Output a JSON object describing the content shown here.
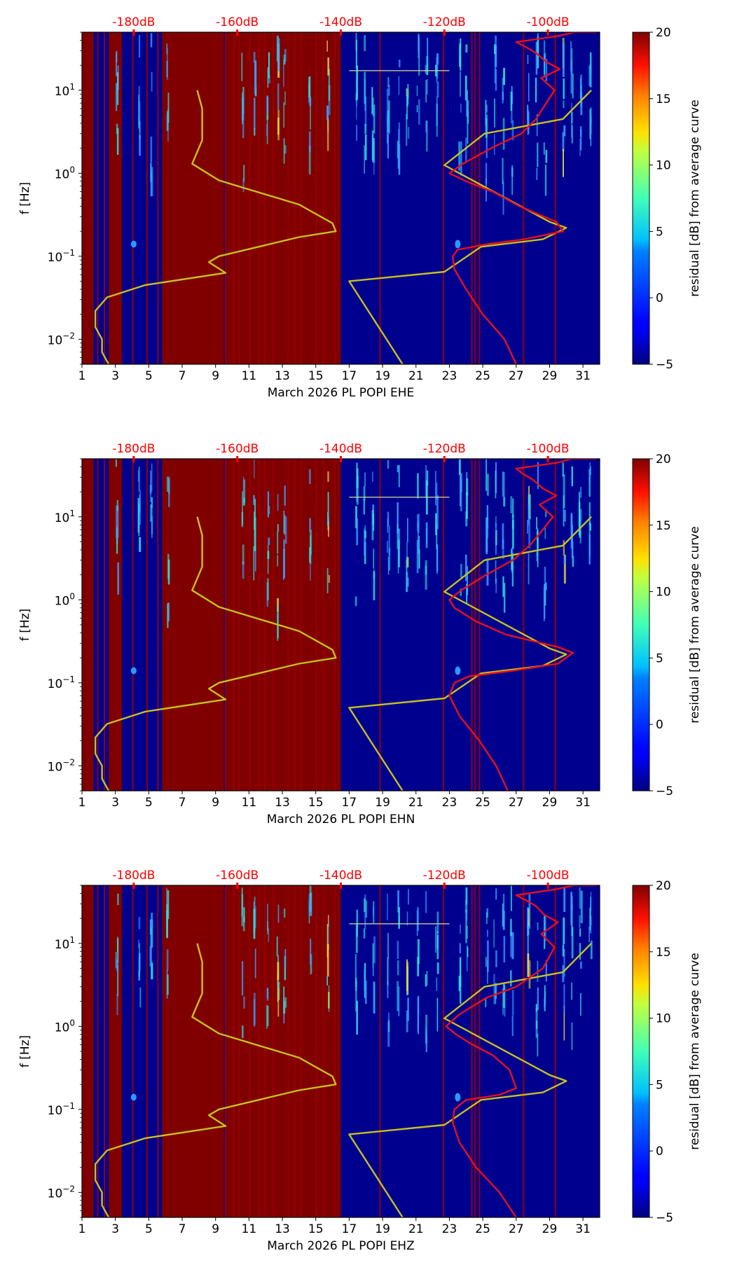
{
  "figure": {
    "description_colors": {
      "background": "#ffffff",
      "axis": "#000000",
      "red_scale": "#ff0000",
      "yellow_curve": "#c8c020",
      "red_curve": "#e8101a",
      "saturated": "#800000",
      "field": "#00008f"
    }
  },
  "chart_data": [
    {
      "type": "heatmap",
      "channel": "EHE",
      "xlabel": "March 2026 PL POPI  EHE",
      "ylabel": "f [Hz]",
      "xlim": [
        1,
        32
      ],
      "xticks": [
        1,
        3,
        5,
        7,
        9,
        11,
        13,
        15,
        17,
        19,
        21,
        23,
        25,
        27,
        29,
        31
      ],
      "ylim": [
        0.005,
        50
      ],
      "yscale": "log",
      "yticks": [
        {
          "value": 0.01,
          "base": "10",
          "exp": "−2"
        },
        {
          "value": 0.1,
          "base": "10",
          "exp": "−1"
        },
        {
          "value": 1,
          "base": "10",
          "exp": "0"
        },
        {
          "value": 10,
          "base": "10",
          "exp": "1"
        }
      ],
      "top_scale": {
        "labels": [
          "-180dB",
          "-160dB",
          "-140dB",
          "-120dB",
          "-100dB"
        ],
        "day_positions": [
          4.1,
          10.3,
          16.5,
          22.7,
          28.9
        ]
      },
      "colorbar": {
        "label": "residual [dB] from average curve",
        "min": -5,
        "max": 20,
        "ticks": [
          -5,
          0,
          5,
          10,
          15,
          20
        ]
      },
      "saturated_day_ranges": [
        [
          1,
          1.7
        ],
        [
          2.6,
          3.4
        ],
        [
          5.8,
          9.5
        ],
        [
          9.6,
          16.5
        ]
      ],
      "model_curve_yellow_left": {
        "x": [
          2.6,
          2.2,
          2.2,
          1.8,
          1.8,
          1.8,
          2.5,
          4.8,
          9.6,
          8.6,
          9.2,
          14.0,
          16.2,
          16.0,
          14.0,
          9.2,
          7.6,
          8.2,
          8.2,
          7.9
        ],
        "y": [
          0.005,
          0.007,
          0.01,
          0.014,
          0.018,
          0.022,
          0.032,
          0.045,
          0.063,
          0.085,
          0.1,
          0.17,
          0.2,
          0.25,
          0.42,
          0.82,
          1.3,
          2.5,
          6,
          10
        ]
      },
      "model_curve_yellow_right": {
        "x": [
          20.2,
          17.0,
          22.7,
          24.9,
          28.6,
          30.0,
          29.0,
          22.7,
          25.1,
          29.8,
          31.5
        ],
        "y": [
          0.005,
          0.05,
          0.065,
          0.13,
          0.16,
          0.22,
          0.26,
          1.25,
          3.0,
          4.5,
          10
        ]
      },
      "median_curve_red": {
        "x": [
          27.0,
          26.3,
          25.0,
          24.0,
          23.3,
          23.2,
          23.5,
          25.3,
          27.5,
          29.8,
          29.4,
          27.2,
          25.6,
          24.0,
          23.0,
          23.8,
          25.5,
          27.3,
          28.2,
          28.8,
          29.3,
          28.5,
          29.6,
          28.8,
          28.2,
          27.6,
          27.0,
          29.5,
          30.5,
          31.8
        ],
        "y": [
          0.005,
          0.01,
          0.02,
          0.04,
          0.07,
          0.1,
          0.12,
          0.14,
          0.16,
          0.2,
          0.26,
          0.4,
          0.6,
          0.8,
          1.0,
          1.3,
          2.0,
          3.0,
          4.5,
          7.0,
          10,
          14,
          18,
          22,
          28,
          33,
          38,
          45,
          50,
          50
        ]
      }
    },
    {
      "type": "heatmap",
      "channel": "EHN",
      "xlabel": "March 2026 PL POPI  EHN",
      "ylabel": "f [Hz]",
      "xlim": [
        1,
        32
      ],
      "xticks": [
        1,
        3,
        5,
        7,
        9,
        11,
        13,
        15,
        17,
        19,
        21,
        23,
        25,
        27,
        29,
        31
      ],
      "ylim": [
        0.005,
        50
      ],
      "yscale": "log",
      "yticks": [
        {
          "value": 0.01,
          "base": "10",
          "exp": "−2"
        },
        {
          "value": 0.1,
          "base": "10",
          "exp": "−1"
        },
        {
          "value": 1,
          "base": "10",
          "exp": "0"
        },
        {
          "value": 10,
          "base": "10",
          "exp": "1"
        }
      ],
      "top_scale": {
        "labels": [
          "-180dB",
          "-160dB",
          "-140dB",
          "-120dB",
          "-100dB"
        ],
        "day_positions": [
          4.1,
          10.3,
          16.5,
          22.7,
          28.9
        ]
      },
      "colorbar": {
        "label": "residual [dB] from average curve",
        "min": -5,
        "max": 20,
        "ticks": [
          -5,
          0,
          5,
          10,
          15,
          20
        ]
      },
      "saturated_day_ranges": [
        [
          1,
          1.7
        ],
        [
          2.6,
          3.4
        ],
        [
          5.8,
          9.5
        ],
        [
          9.6,
          16.5
        ]
      ],
      "model_curve_yellow_left": {
        "x": [
          2.6,
          2.2,
          2.2,
          1.8,
          1.8,
          1.8,
          2.5,
          4.8,
          9.6,
          8.6,
          9.2,
          14.0,
          16.2,
          16.0,
          14.0,
          9.2,
          7.6,
          8.2,
          8.2,
          7.9
        ],
        "y": [
          0.005,
          0.007,
          0.01,
          0.014,
          0.018,
          0.022,
          0.032,
          0.045,
          0.063,
          0.085,
          0.1,
          0.17,
          0.2,
          0.25,
          0.42,
          0.82,
          1.3,
          2.5,
          6,
          10
        ]
      },
      "model_curve_yellow_right": {
        "x": [
          20.2,
          17.0,
          22.7,
          24.9,
          28.6,
          30.0,
          29.0,
          22.7,
          25.1,
          29.8,
          31.5
        ],
        "y": [
          0.005,
          0.05,
          0.065,
          0.13,
          0.16,
          0.22,
          0.26,
          1.25,
          3.0,
          4.5,
          10
        ]
      },
      "median_curve_red": {
        "x": [
          26.5,
          25.8,
          24.8,
          23.6,
          23.0,
          23.3,
          24.2,
          26.8,
          29.5,
          30.4,
          29.5,
          26.4,
          24.6,
          23.3,
          23.0,
          23.7,
          25.2,
          26.8,
          27.8,
          28.6,
          29.2,
          28.4,
          29.4,
          28.6,
          28.0,
          27.4,
          27.0,
          29.5,
          30.3,
          31.8
        ],
        "y": [
          0.005,
          0.01,
          0.02,
          0.04,
          0.07,
          0.1,
          0.12,
          0.14,
          0.17,
          0.23,
          0.27,
          0.38,
          0.55,
          0.8,
          1.0,
          1.3,
          2.0,
          3.0,
          4.5,
          7.0,
          10,
          14,
          18,
          22,
          28,
          33,
          38,
          45,
          50,
          50
        ]
      }
    },
    {
      "type": "heatmap",
      "channel": "EHZ",
      "xlabel": "March 2026 PL POPI  EHZ",
      "ylabel": "f [Hz]",
      "xlim": [
        1,
        32
      ],
      "xticks": [
        1,
        3,
        5,
        7,
        9,
        11,
        13,
        15,
        17,
        19,
        21,
        23,
        25,
        27,
        29,
        31
      ],
      "ylim": [
        0.005,
        50
      ],
      "yscale": "log",
      "yticks": [
        {
          "value": 0.01,
          "base": "10",
          "exp": "−2"
        },
        {
          "value": 0.1,
          "base": "10",
          "exp": "−1"
        },
        {
          "value": 1,
          "base": "10",
          "exp": "0"
        },
        {
          "value": 10,
          "base": "10",
          "exp": "1"
        }
      ],
      "top_scale": {
        "labels": [
          "-180dB",
          "-160dB",
          "-140dB",
          "-120dB",
          "-100dB"
        ],
        "day_positions": [
          4.1,
          10.3,
          16.5,
          22.7,
          28.9
        ]
      },
      "colorbar": {
        "label": "residual [dB] from average curve",
        "min": -5,
        "max": 20,
        "ticks": [
          -5,
          0,
          5,
          10,
          15,
          20
        ]
      },
      "saturated_day_ranges": [
        [
          1,
          1.7
        ],
        [
          2.6,
          3.4
        ],
        [
          5.8,
          9.5
        ],
        [
          9.6,
          16.5
        ]
      ],
      "model_curve_yellow_left": {
        "x": [
          2.6,
          2.2,
          2.2,
          1.8,
          1.8,
          1.8,
          2.5,
          4.8,
          9.6,
          8.6,
          9.2,
          14.0,
          16.2,
          16.0,
          14.0,
          9.2,
          7.6,
          8.2,
          8.2,
          7.9
        ],
        "y": [
          0.005,
          0.007,
          0.01,
          0.014,
          0.018,
          0.022,
          0.032,
          0.045,
          0.063,
          0.085,
          0.1,
          0.17,
          0.2,
          0.25,
          0.42,
          0.82,
          1.3,
          2.5,
          6,
          10
        ]
      },
      "model_curve_yellow_right": {
        "x": [
          20.2,
          17.0,
          22.7,
          24.9,
          28.6,
          30.0,
          29.0,
          22.7,
          25.1,
          29.8,
          31.5
        ],
        "y": [
          0.005,
          0.05,
          0.065,
          0.13,
          0.16,
          0.22,
          0.26,
          1.25,
          3.0,
          4.5,
          10
        ]
      },
      "median_curve_red": {
        "x": [
          27.0,
          26.0,
          24.6,
          23.6,
          23.2,
          23.3,
          24.0,
          26.0,
          27.0,
          26.6,
          25.6,
          24.4,
          23.4,
          22.8,
          23.6,
          25.2,
          27.0,
          28.6,
          29.3,
          28.5,
          29.5,
          28.7,
          28.2,
          27.6,
          27.0,
          29.4,
          30.5,
          31.8
        ],
        "y": [
          0.005,
          0.01,
          0.02,
          0.04,
          0.07,
          0.1,
          0.13,
          0.15,
          0.18,
          0.3,
          0.45,
          0.6,
          0.8,
          1.0,
          1.4,
          2.2,
          3.0,
          5.0,
          9.0,
          13,
          18,
          22,
          28,
          33,
          38,
          45,
          50,
          50
        ]
      }
    }
  ]
}
